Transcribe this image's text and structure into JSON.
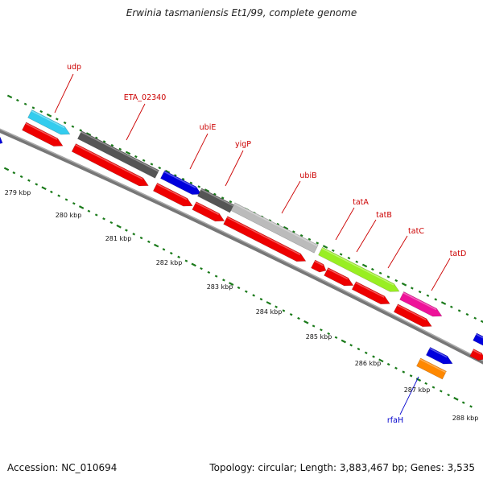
{
  "title": "Erwinia tasmaniensis Et1/99, complete genome",
  "footer": {
    "accession": "Accession: NC_010694",
    "summary": "Topology: circular; Length: 3,883,467 bp; Genes: 3,535"
  },
  "gene_labels": [
    {
      "id": "udp",
      "text": "udp",
      "color": "#cc0000"
    },
    {
      "id": "eta02340",
      "text": "ETA_02340",
      "color": "#cc0000"
    },
    {
      "id": "ubie",
      "text": "ubiE",
      "color": "#cc0000"
    },
    {
      "id": "yigp",
      "text": "yigP",
      "color": "#cc0000"
    },
    {
      "id": "ubib",
      "text": "ubiB",
      "color": "#cc0000"
    },
    {
      "id": "tata",
      "text": "tatA",
      "color": "#cc0000"
    },
    {
      "id": "tatb",
      "text": "tatB",
      "color": "#cc0000"
    },
    {
      "id": "tatc",
      "text": "tatC",
      "color": "#cc0000"
    },
    {
      "id": "tatd",
      "text": "tatD",
      "color": "#cc0000"
    },
    {
      "id": "rfah",
      "text": "rfaH",
      "color": "#0000cc"
    }
  ],
  "scale_labels": [
    "279 kbp",
    "280 kbp",
    "281 kbp",
    "282 kbp",
    "283 kbp",
    "284 kbp",
    "285 kbp",
    "286 kbp",
    "287 kbp",
    "288 kbp"
  ],
  "colors": {
    "cds": "#ee0000",
    "backbone": "#888888",
    "tick": "#1a7a1a",
    "udp": "#33ccee",
    "dark_gray": "#555555",
    "ubie": "#0000dd",
    "ubib": "#bbbbbb",
    "tata": "#99ee22",
    "tatd": "#ee1199",
    "rfah": "#ff8800",
    "blue_small": "#0000dd"
  }
}
